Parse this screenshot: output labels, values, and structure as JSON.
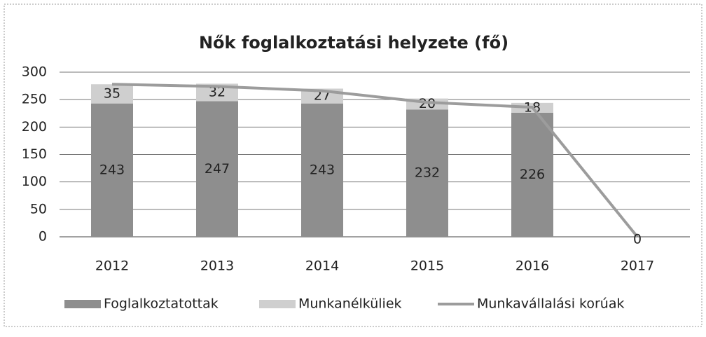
{
  "chart_data": {
    "type": "bar-line",
    "title": "Nők foglalkoztatási helyzete (fő)",
    "categories": [
      "2012",
      "2013",
      "2014",
      "2015",
      "2016",
      "2017"
    ],
    "series": [
      {
        "name": "Foglalkoztatottak",
        "type": "bar",
        "color": "#8e8e8e",
        "values": [
          243,
          247,
          243,
          232,
          226,
          null
        ]
      },
      {
        "name": "Munkanélküliek",
        "type": "bar",
        "color": "#cfcfcf",
        "values": [
          35,
          32,
          27,
          20,
          18,
          null
        ]
      },
      {
        "name": "Munkavállalási korúak",
        "type": "line",
        "color": "#9c9c9c",
        "values": [
          278,
          274,
          266,
          245,
          236,
          0
        ],
        "value_labels": [
          null,
          null,
          null,
          null,
          null,
          "0"
        ]
      }
    ],
    "ylim": [
      0,
      300
    ],
    "yticks": [
      0,
      50,
      100,
      150,
      200,
      250,
      300
    ],
    "grid": true,
    "legend": "bottom"
  }
}
